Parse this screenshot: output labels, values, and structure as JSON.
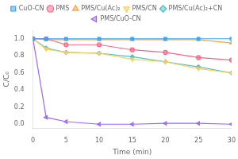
{
  "chart_data": {
    "type": "line",
    "x": [
      0,
      2,
      5,
      10,
      15,
      20,
      25,
      30
    ],
    "series": [
      {
        "name": "CuO-CN",
        "marker": "square",
        "values": [
          1.0,
          1.0,
          1.0,
          1.0,
          1.0,
          1.0,
          1.0,
          1.0
        ]
      },
      {
        "name": "PMS",
        "marker": "circle",
        "values": [
          1.0,
          1.0,
          0.93,
          0.93,
          0.87,
          0.84,
          0.78,
          0.75
        ]
      },
      {
        "name": "PMS/Cu(Ac)₂",
        "marker": "triangle-up",
        "values": [
          1.0,
          0.99,
          0.99,
          0.99,
          0.99,
          0.99,
          0.99,
          0.95
        ]
      },
      {
        "name": "PMS/CN",
        "marker": "triangle-down",
        "values": [
          1.0,
          0.88,
          0.84,
          0.83,
          0.76,
          0.73,
          0.65,
          0.6
        ]
      },
      {
        "name": "PMS/Cu(Ac)₂+CN",
        "marker": "diamond",
        "values": [
          1.0,
          0.89,
          0.84,
          0.83,
          0.79,
          0.73,
          0.67,
          0.6
        ]
      },
      {
        "name": "PMS/CuO-CN",
        "marker": "triangle-left",
        "values": [
          1.0,
          0.08,
          0.03,
          0.0,
          0.0,
          0.01,
          0.01,
          0.0
        ]
      }
    ],
    "x_label": "Time (min)",
    "y_label": "C/C₀",
    "xlim": [
      0,
      30
    ],
    "xticks": [
      0,
      5,
      10,
      15,
      20,
      25,
      30
    ],
    "ylim": [
      -0.05,
      1.1
    ],
    "yticks": [
      {
        "value": 0.0,
        "label": "0.0"
      },
      0.2,
      0.4,
      0.6,
      0.8,
      {
        "value": 1.0,
        "label": "1.0"
      }
    ],
    "grid": false
  }
}
